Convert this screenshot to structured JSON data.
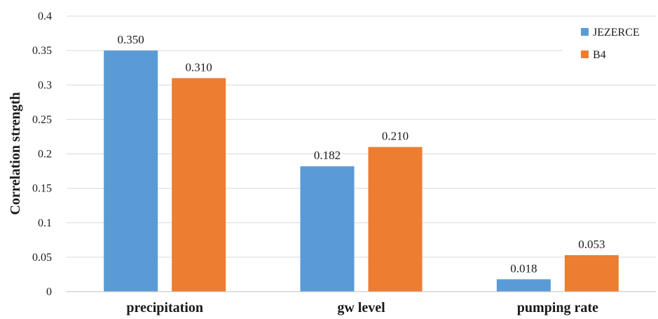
{
  "chart_data": {
    "type": "bar",
    "title": "",
    "xlabel": "",
    "ylabel": "Correlation strength",
    "categories": [
      "precipitation",
      "gw level",
      "pumping rate"
    ],
    "series": [
      {
        "name": "JEZERCE",
        "color": "#5b9bd5",
        "values": [
          0.35,
          0.182,
          0.018
        ],
        "labels": [
          "0.350",
          "0.182",
          "0.018"
        ]
      },
      {
        "name": "B4",
        "color": "#ed7d31",
        "values": [
          0.31,
          0.21,
          0.053
        ],
        "labels": [
          "0.310",
          "0.210",
          "0.053"
        ]
      }
    ],
    "ylim": [
      0,
      0.4
    ],
    "yticks": [
      0,
      0.05,
      0.1,
      0.15,
      0.2,
      0.25,
      0.3,
      0.35,
      0.4
    ],
    "ytick_labels": [
      "0",
      "0.05",
      "0.1",
      "0.15",
      "0.2",
      "0.25",
      "0.3",
      "0.35",
      "0.4"
    ],
    "grid": true,
    "legend": "top-right"
  }
}
